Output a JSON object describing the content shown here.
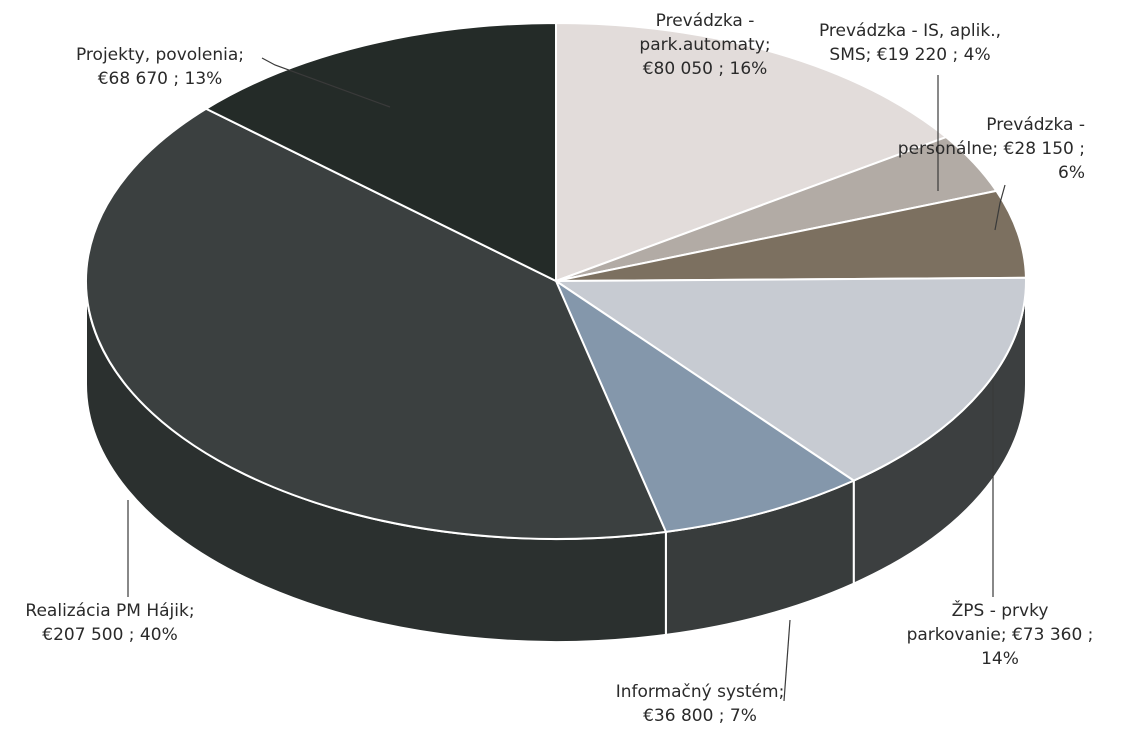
{
  "chart_data": {
    "type": "pie",
    "style": "3d",
    "slices": [
      {
        "label_lines": [
          "Prevádzka -",
          "park.automaty;",
          "€80 050 ; 16%"
        ],
        "value": 80050,
        "percent": 16,
        "color": "#e2dcda",
        "side": "#aaa5a3"
      },
      {
        "label_lines": [
          "Prevádzka - IS, aplik.,",
          "SMS;  €19 220 ; 4%"
        ],
        "value": 19220,
        "percent": 4,
        "color": "#b2aba5",
        "side": "#837c77"
      },
      {
        "label_lines": [
          "Prevádzka -",
          "personálne;  €28 150 ;",
          "6%"
        ],
        "value": 28150,
        "percent": 6,
        "color": "#7c7060",
        "side": "#574e42"
      },
      {
        "label_lines": [
          "ŽPS - prvky",
          "parkovanie;  €73 360 ;",
          "14%"
        ],
        "value": 73360,
        "percent": 14,
        "color": "#c7cbd2",
        "side": "#3c3f40"
      },
      {
        "label_lines": [
          "Informačný systém;",
          "€36 800 ; 7%"
        ],
        "value": 36800,
        "percent": 7,
        "color": "#8497ab",
        "side": "#383c3c"
      },
      {
        "label_lines": [
          "Realizácia PM Hájik;",
          "€207 500 ; 40%"
        ],
        "value": 207500,
        "percent": 40,
        "color": "#3b4040",
        "side": "#2b302f"
      },
      {
        "label_lines": [
          "Projekty, povolenia;",
          "€68 670 ; 13%"
        ],
        "value": 68670,
        "percent": 13,
        "color": "#242b28",
        "side": "#1a201d"
      }
    ]
  }
}
